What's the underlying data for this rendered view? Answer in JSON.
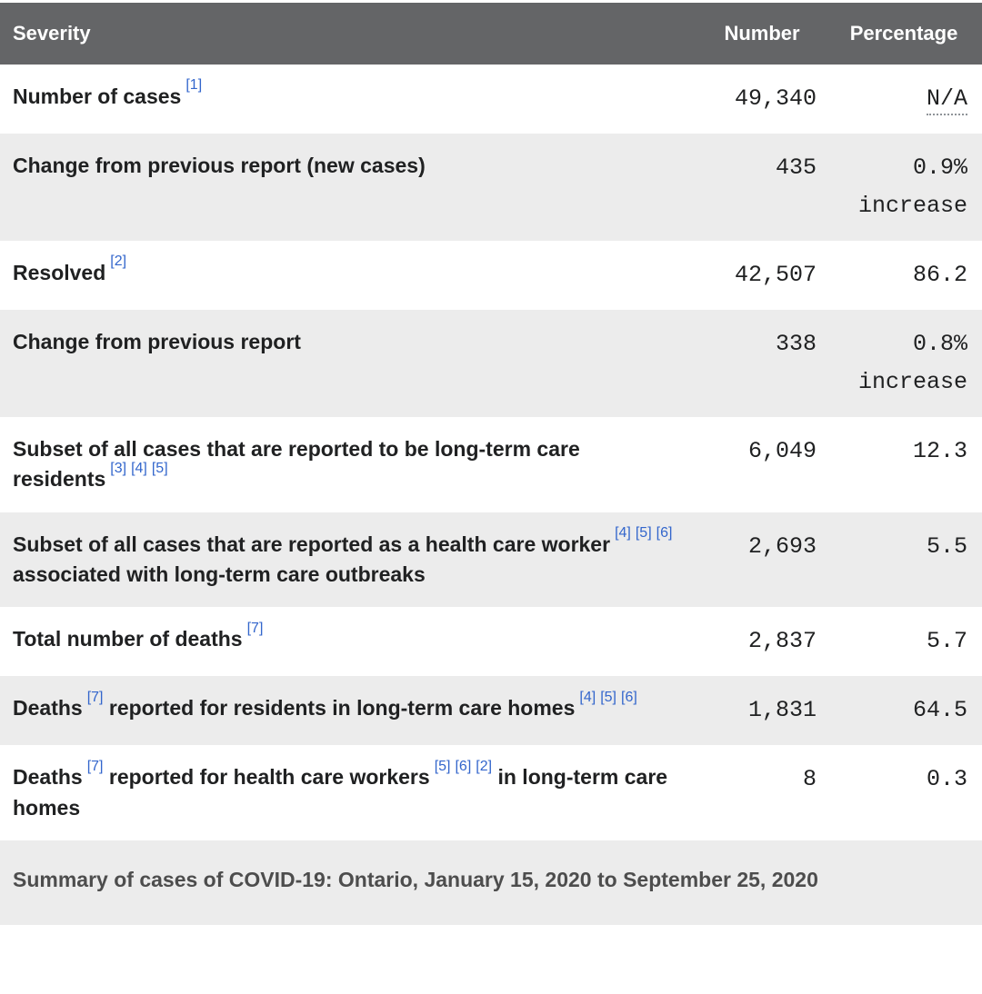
{
  "colors": {
    "header_bg": "#646567",
    "header_text": "#ffffff",
    "row_bg": "#ffffff",
    "row_alt_bg": "#ececec",
    "text": "#202122",
    "caption_bg": "#ececec",
    "caption_text": "#4d4d4d",
    "ref_link": "#3366cc",
    "abbr_dots": "#8f9398"
  },
  "table": {
    "columns": [
      "Severity",
      "Number",
      "Percentage"
    ],
    "rows": [
      {
        "label": [
          {
            "t": "Number of cases"
          },
          {
            "r": "[1]"
          }
        ],
        "number": "49,340",
        "percentage": "N/A",
        "abbr": true
      },
      {
        "label": [
          {
            "t": "Change from previous report (new cases)"
          }
        ],
        "number": "435",
        "percentage": "0.9% increase"
      },
      {
        "label": [
          {
            "t": "Resolved"
          },
          {
            "r": "[2]"
          }
        ],
        "number": "42,507",
        "percentage": "86.2"
      },
      {
        "label": [
          {
            "t": "Change from previous report"
          }
        ],
        "number": "338",
        "percentage": "0.8% increase"
      },
      {
        "label": [
          {
            "t": "Subset of all cases that are reported to be long-term care residents"
          },
          {
            "r": "[3]"
          },
          {
            "r": "[4]"
          },
          {
            "r": "[5]"
          }
        ],
        "number": "6,049",
        "percentage": "12.3"
      },
      {
        "label": [
          {
            "t": "Subset of all cases that are reported as a health care worker"
          },
          {
            "r": "[4]"
          },
          {
            "r": "[5]"
          },
          {
            "r": "[6]"
          },
          {
            "t": " associated with long-term care outbreaks"
          }
        ],
        "number": "2,693",
        "percentage": "5.5"
      },
      {
        "label": [
          {
            "t": "Total number of deaths"
          },
          {
            "r": "[7]"
          }
        ],
        "number": "2,837",
        "percentage": "5.7"
      },
      {
        "label": [
          {
            "t": "Deaths"
          },
          {
            "r": "[7]"
          },
          {
            "t": " reported for residents in long-term care homes"
          },
          {
            "r": "[4]"
          },
          {
            "r": "[5]"
          },
          {
            "r": "[6]"
          }
        ],
        "number": "1,831",
        "percentage": "64.5"
      },
      {
        "label": [
          {
            "t": "Deaths"
          },
          {
            "r": "[7]"
          },
          {
            "t": " reported for health care workers"
          },
          {
            "r": "[5]"
          },
          {
            "r": "[6]"
          },
          {
            "r": "[2]"
          },
          {
            "t": " in long-term care homes"
          }
        ],
        "number": "8",
        "percentage": "0.3"
      }
    ],
    "caption": "Summary of cases of COVID-19: Ontario, January 15, 2020 to September 25, 2020"
  },
  "chart_data": {
    "type": "table",
    "title": "Summary of cases of COVID-19: Ontario, January 15, 2020 to September 25, 2020",
    "columns": [
      "Severity",
      "Number",
      "Percentage"
    ],
    "rows": [
      [
        "Number of cases [1]",
        49340,
        "N/A"
      ],
      [
        "Change from previous report (new cases)",
        435,
        "0.9% increase"
      ],
      [
        "Resolved [2]",
        42507,
        "86.2"
      ],
      [
        "Change from previous report",
        338,
        "0.8% increase"
      ],
      [
        "Subset of all cases that are reported to be long-term care residents [3] [4] [5]",
        6049,
        "12.3"
      ],
      [
        "Subset of all cases that are reported as a health care worker [4] [5] [6] associated with long-term care outbreaks",
        2693,
        "5.5"
      ],
      [
        "Total number of deaths [7]",
        2837,
        "5.7"
      ],
      [
        "Deaths [7] reported for residents in long-term care homes [4] [5] [6]",
        1831,
        "64.5"
      ],
      [
        "Deaths [7] reported for health care workers [5] [6] [2] in long-term care homes",
        8,
        "0.3"
      ]
    ]
  }
}
